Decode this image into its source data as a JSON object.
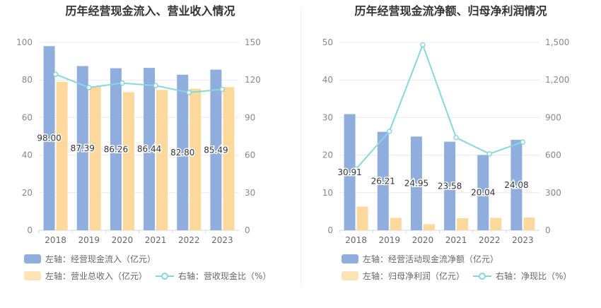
{
  "charts": [
    {
      "title": "历年经营现金流入、营业收入情况",
      "legend": {
        "bar1": "左轴：经营现金流入（亿元）",
        "bar2": "左轴：营业总收入（亿元）",
        "line": "右轴：营收现金比（%）"
      }
    },
    {
      "title": "历年经营现金流净额、归母净利润情况",
      "legend": {
        "bar1": "左轴：经营活动现金流净额（亿元）",
        "bar2": "左轴：归母净利润（亿元）",
        "line": "右轴：净现比（%）"
      }
    }
  ],
  "chart_data": [
    {
      "type": "bar",
      "title": "历年经营现金流入、营业收入情况",
      "categories": [
        "2018",
        "2019",
        "2020",
        "2021",
        "2022",
        "2023"
      ],
      "left_axis": {
        "ylim": [
          0,
          100
        ],
        "ticks": [
          "0",
          "20",
          "40",
          "60",
          "80",
          "100"
        ]
      },
      "right_axis": {
        "ylim": [
          0,
          150
        ],
        "ticks": [
          "0",
          "30",
          "60",
          "90",
          "120",
          "150"
        ]
      },
      "series": [
        {
          "name": "左轴：经营现金流入（亿元）",
          "type": "bar",
          "axis": "left",
          "color": "#8faedd",
          "values": [
            98.0,
            87.39,
            86.26,
            86.44,
            82.8,
            85.49
          ],
          "labels": [
            "98.00",
            "87.39",
            "86.26",
            "86.44",
            "82.80",
            "85.49"
          ]
        },
        {
          "name": "左轴：营业总收入（亿元）",
          "type": "bar",
          "axis": "left",
          "color": "#fcd89c",
          "values": [
            79,
            76.5,
            73.5,
            74.7,
            75.3,
            76.2
          ]
        },
        {
          "name": "右轴：营收现金比（%）",
          "type": "line",
          "axis": "right",
          "color": "#88d6dc",
          "values": [
            124.5,
            114,
            117.5,
            115.5,
            110,
            112.5
          ]
        }
      ],
      "grid": true
    },
    {
      "type": "bar",
      "title": "历年经营现金流净额、归母净利润情况",
      "categories": [
        "2018",
        "2019",
        "2020",
        "2021",
        "2022",
        "2023"
      ],
      "left_axis": {
        "ylim": [
          0,
          50
        ],
        "ticks": [
          "0",
          "10",
          "20",
          "30",
          "40",
          "50"
        ]
      },
      "right_axis": {
        "ylim": [
          0,
          1500
        ],
        "ticks": [
          "0",
          "300",
          "600",
          "900",
          "1,200",
          "1,500"
        ]
      },
      "series": [
        {
          "name": "左轴：经营活动现金流净额（亿元）",
          "type": "bar",
          "axis": "left",
          "color": "#8faedd",
          "values": [
            30.91,
            26.21,
            24.95,
            23.58,
            20.04,
            24.08
          ],
          "labels": [
            "30.91",
            "26.21",
            "24.95",
            "23.58",
            "20.04",
            "24.08"
          ]
        },
        {
          "name": "左轴：归母净利润（亿元）",
          "type": "bar",
          "axis": "left",
          "color": "#fcd89c",
          "values": [
            6.3,
            3.3,
            1.6,
            3.2,
            3.3,
            3.4
          ]
        },
        {
          "name": "右轴：净现比（%）",
          "type": "line",
          "axis": "right",
          "color": "#88d6dc",
          "values": [
            490,
            790,
            1480,
            740,
            610,
            705
          ]
        }
      ],
      "grid": true
    }
  ]
}
